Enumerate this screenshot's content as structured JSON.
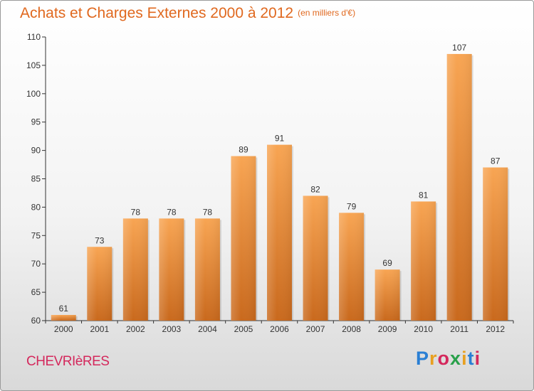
{
  "title": "Achats et Charges Externes 2000 à 2012",
  "unit": "(en milliers d'€)",
  "location": "CHEVRIèRES",
  "brand": {
    "letters": [
      {
        "ch": "P",
        "color": "#2a7fd4"
      },
      {
        "ch": "r",
        "color": "#e8a020"
      },
      {
        "ch": "o",
        "color": "#d4285c"
      },
      {
        "ch": "x",
        "color": "#29a04a"
      },
      {
        "ch": "i",
        "color": "#e8a020"
      },
      {
        "ch": "t",
        "color": "#2a7fd4"
      },
      {
        "ch": "i",
        "color": "#d4285c"
      }
    ]
  },
  "chart_data": {
    "type": "bar",
    "title": "Achats et Charges Externes 2000 à 2012",
    "categories": [
      "2000",
      "2001",
      "2002",
      "2003",
      "2004",
      "2005",
      "2006",
      "2007",
      "2008",
      "2009",
      "2010",
      "2011",
      "2012"
    ],
    "values": [
      61,
      73,
      78,
      78,
      78,
      89,
      91,
      82,
      79,
      69,
      81,
      107,
      87
    ],
    "ylim": [
      60,
      110
    ],
    "yticks": [
      60,
      65,
      70,
      75,
      80,
      85,
      90,
      95,
      100,
      105,
      110
    ],
    "grid": false,
    "bar_color": "#f0922e"
  }
}
